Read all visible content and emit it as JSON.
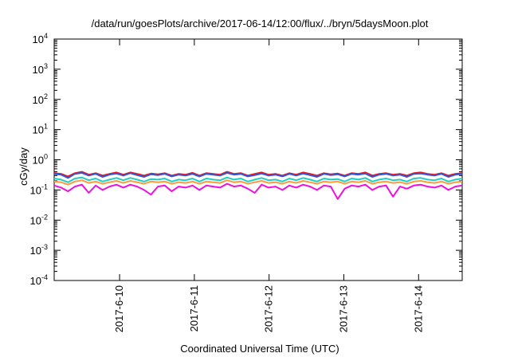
{
  "chart_data": {
    "type": "line",
    "title": "/data/run/goesPlots/archive/2017-06-14/12:00/flux/../bryn/5daysMoon.plot",
    "xlabel": "Coordinated Universal Time (UTC)",
    "ylabel": "cGy/day",
    "yscale": "log",
    "ylim": [
      0.0001,
      10000
    ],
    "xlim": [
      "2017-06-09 03:00",
      "2017-06-14 14:00"
    ],
    "y_ticks": [
      {
        "base": "10",
        "exp": "-4"
      },
      {
        "base": "10",
        "exp": "-3"
      },
      {
        "base": "10",
        "exp": "-2"
      },
      {
        "base": "10",
        "exp": "-1"
      },
      {
        "base": "10",
        "exp": "0"
      },
      {
        "base": "10",
        "exp": "1"
      },
      {
        "base": "10",
        "exp": "2"
      },
      {
        "base": "10",
        "exp": "3"
      },
      {
        "base": "10",
        "exp": "4"
      }
    ],
    "x_ticks": [
      "2017-6-10",
      "2017-6-11",
      "2017-6-12",
      "2017-6-13",
      "2017-6-14"
    ],
    "legend": "none",
    "grid": false,
    "series": [
      {
        "color": "#e41a1c",
        "values": [
          0.36,
          0.34,
          0.28,
          0.36,
          0.4,
          0.32,
          0.36,
          0.3,
          0.34,
          0.38,
          0.32,
          0.38,
          0.34,
          0.3,
          0.35,
          0.33,
          0.36,
          0.3,
          0.34,
          0.32,
          0.37,
          0.3,
          0.36,
          0.34,
          0.32,
          0.4,
          0.34,
          0.36,
          0.3,
          0.34,
          0.38,
          0.32,
          0.34,
          0.3,
          0.36,
          0.32,
          0.38,
          0.34,
          0.3,
          0.36,
          0.33,
          0.35,
          0.3,
          0.36,
          0.34,
          0.38,
          0.3,
          0.34,
          0.36,
          0.32,
          0.34,
          0.3,
          0.36,
          0.38,
          0.34,
          0.32,
          0.36,
          0.3,
          0.34,
          0.36
        ]
      },
      {
        "color": "#3355dd",
        "values": [
          0.34,
          0.32,
          0.25,
          0.34,
          0.37,
          0.3,
          0.34,
          0.27,
          0.32,
          0.35,
          0.3,
          0.36,
          0.31,
          0.27,
          0.33,
          0.31,
          0.34,
          0.28,
          0.32,
          0.3,
          0.34,
          0.28,
          0.34,
          0.32,
          0.3,
          0.37,
          0.32,
          0.34,
          0.28,
          0.31,
          0.35,
          0.3,
          0.32,
          0.28,
          0.34,
          0.3,
          0.35,
          0.31,
          0.27,
          0.34,
          0.31,
          0.33,
          0.28,
          0.34,
          0.32,
          0.35,
          0.27,
          0.32,
          0.34,
          0.3,
          0.32,
          0.27,
          0.34,
          0.35,
          0.32,
          0.3,
          0.34,
          0.27,
          0.32,
          0.34
        ]
      },
      {
        "color": "#1fd0c0",
        "values": [
          0.24,
          0.22,
          0.18,
          0.24,
          0.26,
          0.21,
          0.24,
          0.19,
          0.22,
          0.25,
          0.21,
          0.25,
          0.22,
          0.19,
          0.23,
          0.22,
          0.24,
          0.19,
          0.22,
          0.21,
          0.24,
          0.19,
          0.24,
          0.22,
          0.21,
          0.26,
          0.22,
          0.24,
          0.19,
          0.22,
          0.25,
          0.21,
          0.22,
          0.19,
          0.24,
          0.21,
          0.25,
          0.22,
          0.19,
          0.24,
          0.22,
          0.23,
          0.19,
          0.24,
          0.22,
          0.25,
          0.19,
          0.22,
          0.24,
          0.21,
          0.22,
          0.19,
          0.24,
          0.25,
          0.22,
          0.21,
          0.24,
          0.19,
          0.22,
          0.24
        ]
      },
      {
        "color": "#ff9a3c",
        "values": [
          0.19,
          0.18,
          0.15,
          0.19,
          0.21,
          0.17,
          0.19,
          0.16,
          0.18,
          0.2,
          0.17,
          0.2,
          0.18,
          0.16,
          0.19,
          0.18,
          0.19,
          0.16,
          0.18,
          0.17,
          0.19,
          0.16,
          0.19,
          0.18,
          0.17,
          0.21,
          0.18,
          0.19,
          0.16,
          0.18,
          0.2,
          0.17,
          0.18,
          0.16,
          0.19,
          0.17,
          0.2,
          0.18,
          0.16,
          0.19,
          0.18,
          0.19,
          0.16,
          0.19,
          0.18,
          0.2,
          0.16,
          0.18,
          0.19,
          0.17,
          0.18,
          0.16,
          0.19,
          0.2,
          0.18,
          0.17,
          0.19,
          0.16,
          0.18,
          0.19
        ]
      },
      {
        "color": "#ee10dd",
        "values": [
          0.14,
          0.12,
          0.09,
          0.13,
          0.15,
          0.08,
          0.14,
          0.1,
          0.13,
          0.15,
          0.12,
          0.15,
          0.13,
          0.1,
          0.07,
          0.13,
          0.14,
          0.09,
          0.13,
          0.12,
          0.14,
          0.1,
          0.14,
          0.13,
          0.12,
          0.16,
          0.13,
          0.14,
          0.11,
          0.08,
          0.15,
          0.12,
          0.13,
          0.1,
          0.14,
          0.12,
          0.15,
          0.13,
          0.1,
          0.14,
          0.13,
          0.05,
          0.11,
          0.14,
          0.13,
          0.15,
          0.1,
          0.13,
          0.14,
          0.06,
          0.13,
          0.11,
          0.14,
          0.15,
          0.13,
          0.12,
          0.14,
          0.1,
          0.13,
          0.14
        ]
      }
    ]
  }
}
